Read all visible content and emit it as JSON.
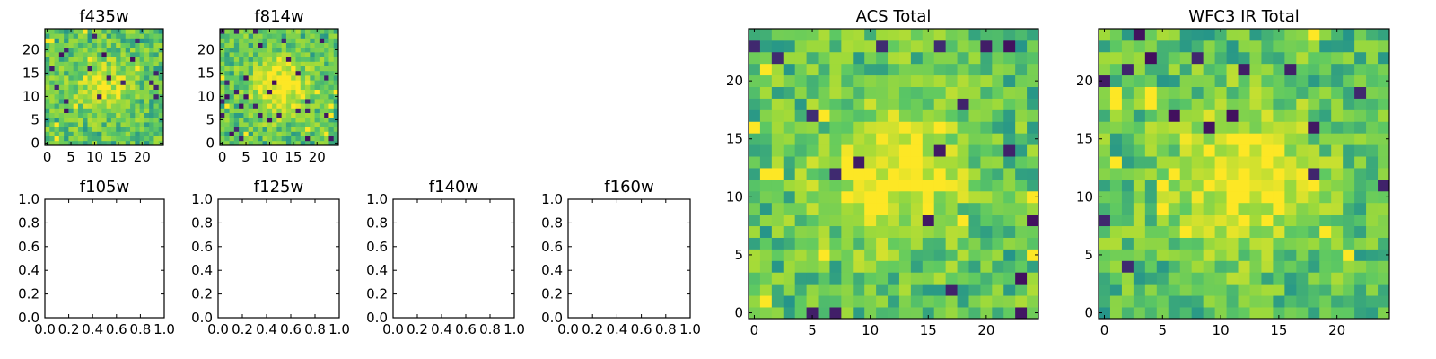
{
  "chart_data": [
    {
      "type": "heatmap",
      "title": "f435w",
      "xticks": [
        "0",
        "5",
        "10",
        "15",
        "20"
      ],
      "yticks": [
        "0",
        "5",
        "10",
        "15",
        "20"
      ],
      "xlim": [
        -0.5,
        24.5
      ],
      "ylim": [
        -0.5,
        24.5
      ],
      "grid_size": 25,
      "seed": 435,
      "hotspot": 0.3
    },
    {
      "type": "heatmap",
      "title": "f814w",
      "xticks": [
        "0",
        "5",
        "10",
        "15",
        "20"
      ],
      "yticks": [
        "0",
        "5",
        "10",
        "15",
        "20"
      ],
      "xlim": [
        -0.5,
        24.5
      ],
      "ylim": [
        -0.5,
        24.5
      ],
      "grid_size": 25,
      "seed": 814,
      "hotspot": 0.45
    },
    {
      "type": "heatmap",
      "title": "f105w",
      "xticks": [
        "0.0",
        "0.2",
        "0.4",
        "0.6",
        "0.8",
        "1.0"
      ],
      "yticks": [
        "0.0",
        "0.2",
        "0.4",
        "0.6",
        "0.8",
        "1.0"
      ],
      "xlim": [
        0,
        1
      ],
      "ylim": [
        0,
        1
      ],
      "values": []
    },
    {
      "type": "heatmap",
      "title": "f125w",
      "xticks": [
        "0.0",
        "0.2",
        "0.4",
        "0.6",
        "0.8",
        "1.0"
      ],
      "yticks": [
        "0.0",
        "0.2",
        "0.4",
        "0.6",
        "0.8",
        "1.0"
      ],
      "xlim": [
        0,
        1
      ],
      "ylim": [
        0,
        1
      ],
      "values": []
    },
    {
      "type": "heatmap",
      "title": "f140w",
      "xticks": [
        "0.0",
        "0.2",
        "0.4",
        "0.6",
        "0.8",
        "1.0"
      ],
      "yticks": [
        "0.0",
        "0.2",
        "0.4",
        "0.6",
        "0.8",
        "1.0"
      ],
      "xlim": [
        0,
        1
      ],
      "ylim": [
        0,
        1
      ],
      "values": []
    },
    {
      "type": "heatmap",
      "title": "f160w",
      "xticks": [
        "0.0",
        "0.2",
        "0.4",
        "0.6",
        "0.8",
        "1.0"
      ],
      "yticks": [
        "0.0",
        "0.2",
        "0.4",
        "0.6",
        "0.8",
        "1.0"
      ],
      "xlim": [
        0,
        1
      ],
      "ylim": [
        0,
        1
      ],
      "values": []
    },
    {
      "type": "heatmap",
      "title": "ACS Total",
      "xticks": [
        "0",
        "5",
        "10",
        "15",
        "20"
      ],
      "yticks": [
        "0",
        "5",
        "10",
        "15",
        "20"
      ],
      "xlim": [
        -0.5,
        24.5
      ],
      "ylim": [
        -0.5,
        24.5
      ],
      "grid_size": 25,
      "seed": 1001,
      "hotspot": 0.4
    },
    {
      "type": "heatmap",
      "title": "WFC3 IR Total",
      "xticks": [
        "0",
        "5",
        "10",
        "15",
        "20"
      ],
      "yticks": [
        "0",
        "5",
        "10",
        "15",
        "20"
      ],
      "xlim": [
        -0.5,
        24.5
      ],
      "ylim": [
        -0.5,
        24.5
      ],
      "grid_size": 25,
      "seed": 2002,
      "hotspot": 0.45
    }
  ],
  "colors": {
    "colormap": "viridis",
    "colormap_stops": [
      "#440154",
      "#3b528b",
      "#21918c",
      "#5ec962",
      "#a0da39",
      "#fde725"
    ]
  }
}
